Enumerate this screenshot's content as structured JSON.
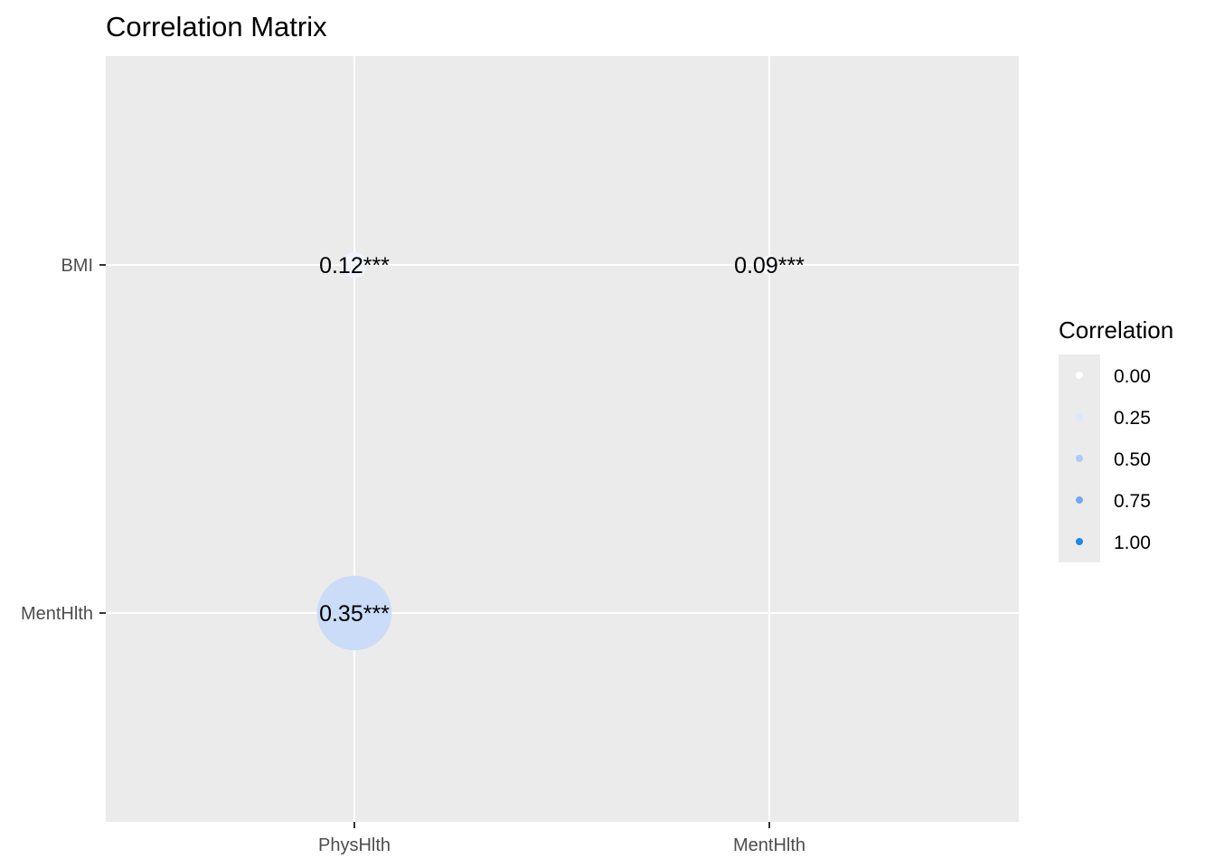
{
  "chart_data": {
    "type": "scatter",
    "title": "Correlation Matrix",
    "xlabel": "",
    "ylabel": "",
    "x_categories": [
      "PhysHlth",
      "MentHlth"
    ],
    "y_categories": [
      "BMI",
      "MentHlth"
    ],
    "points": [
      {
        "x": "PhysHlth",
        "y": "BMI",
        "value": 0.12,
        "label": "0.12***"
      },
      {
        "x": "MentHlth",
        "y": "BMI",
        "value": 0.09,
        "label": "0.09***"
      },
      {
        "x": "PhysHlth",
        "y": "MentHlth",
        "value": 0.35,
        "label": "0.35***"
      }
    ],
    "grid": true,
    "legend": {
      "title": "Correlation",
      "placement": "right",
      "entries": [
        {
          "value": 0.0,
          "label": "0.00",
          "color": "#ffffff"
        },
        {
          "value": 0.25,
          "label": "0.25",
          "color": "#dde8fa"
        },
        {
          "value": 0.5,
          "label": "0.50",
          "color": "#afcaf6"
        },
        {
          "value": 0.75,
          "label": "0.75",
          "color": "#74a9ef"
        },
        {
          "value": 1.0,
          "label": "1.00",
          "color": "#1f8ae6"
        }
      ]
    },
    "colors": {
      "panel": "#ebebeb",
      "grid": "#ffffff",
      "low": "#ffffff",
      "high": "#1f8ae6"
    }
  }
}
